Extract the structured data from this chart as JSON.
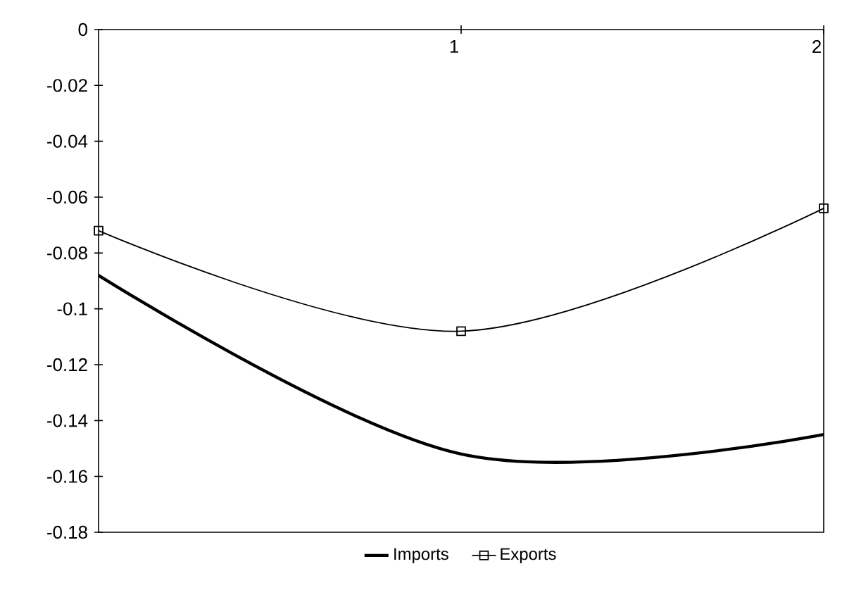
{
  "chart_data": {
    "type": "line",
    "x": [
      0,
      1,
      2
    ],
    "series": [
      {
        "name": "Imports",
        "color": "#000000",
        "values": [
          -0.088,
          -0.152,
          -0.145
        ],
        "marker": "none"
      },
      {
        "name": "Exports",
        "color": "#000000",
        "values": [
          -0.072,
          -0.108,
          -0.064
        ],
        "marker": "square"
      }
    ],
    "xlim": [
      0,
      2
    ],
    "xticks": [
      1,
      2
    ],
    "ylim": [
      -0.18,
      0
    ],
    "yticks": [
      0,
      -0.02,
      -0.04,
      -0.06,
      -0.08,
      -0.1,
      -0.12,
      -0.14,
      -0.16,
      -0.18
    ],
    "legend": "bottom"
  }
}
